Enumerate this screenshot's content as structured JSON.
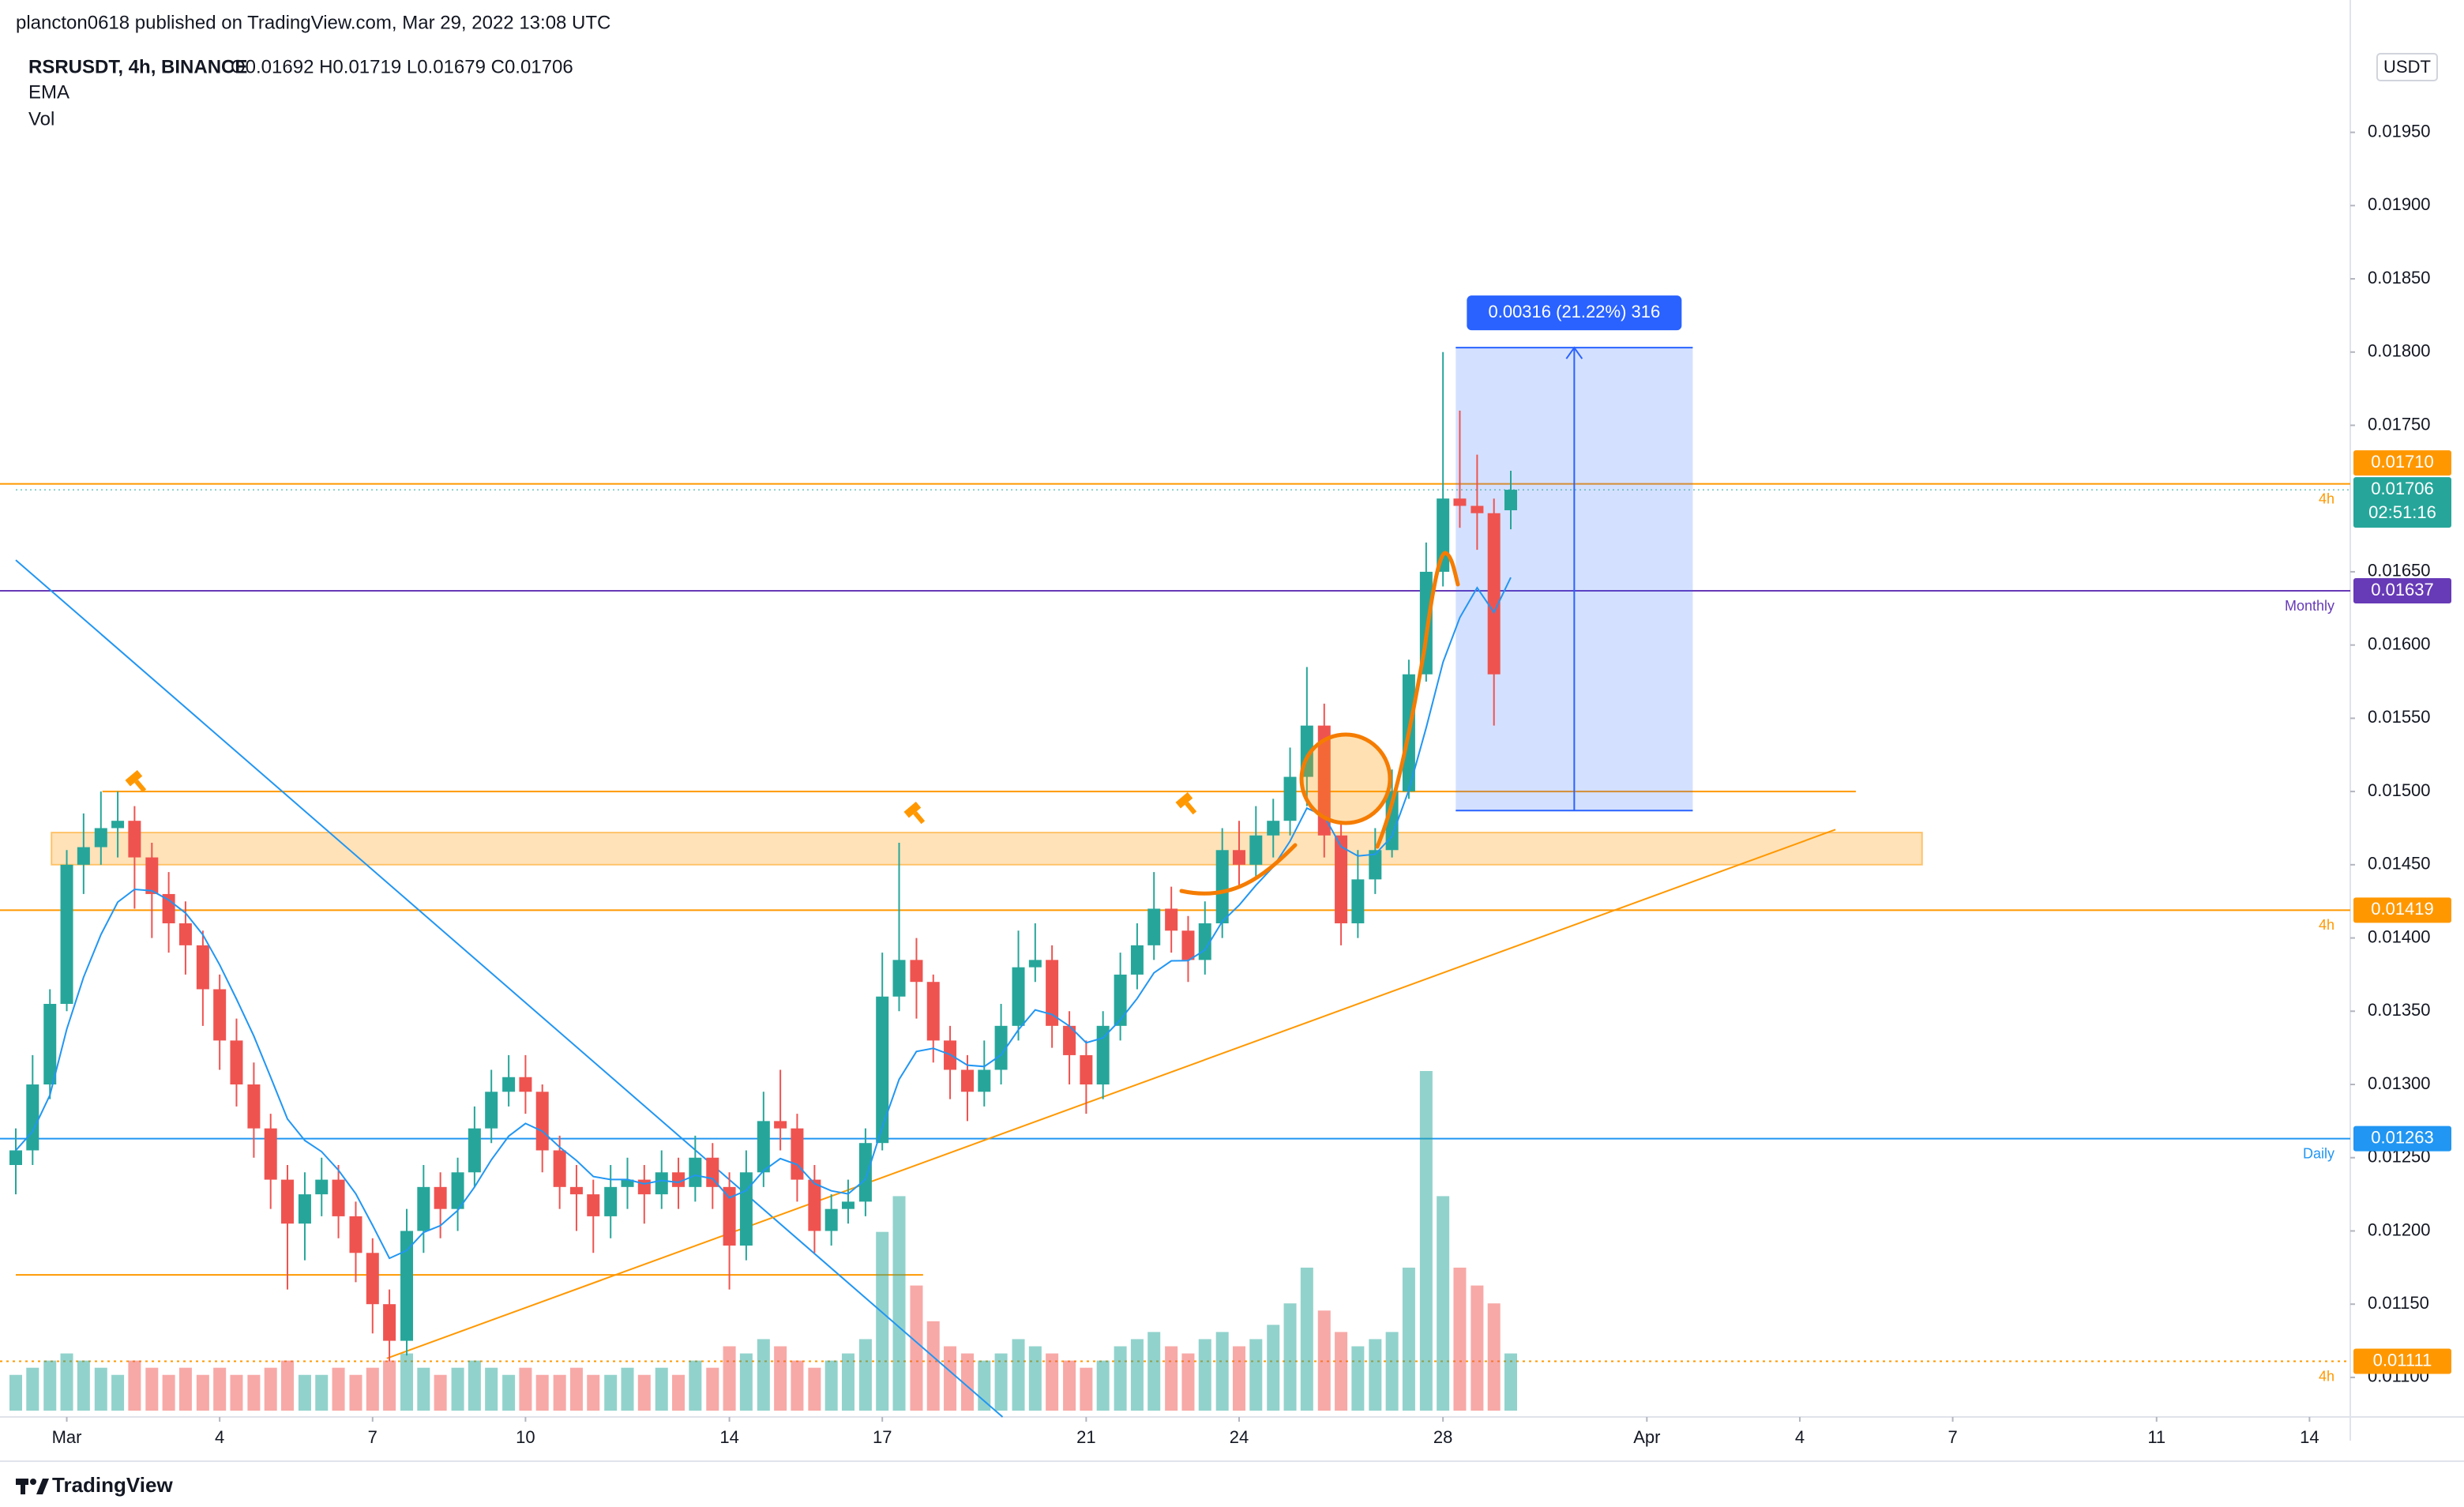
{
  "header": {
    "published": "plancton0618 published on TradingView.com, Mar 29, 2022 13:08 UTC",
    "symbol": "RSRUSDT, 4h, BINANCE",
    "ohlc": "O0.01692 H0.01719 L0.01679 C0.01706",
    "indicators": [
      "EMA",
      "Vol"
    ]
  },
  "chart_data": {
    "type": "candlestick",
    "x": [
      0,
      0.33,
      0.67,
      1,
      1.33,
      1.67,
      2,
      2.33,
      2.67,
      3,
      3.33,
      3.67,
      4,
      4.33,
      4.67,
      5,
      5.33,
      5.67,
      6,
      6.33,
      6.67,
      7,
      7.33,
      7.67,
      8,
      8.33,
      8.67,
      9,
      9.33,
      9.67,
      10,
      10.33,
      10.67,
      11,
      11.33,
      11.67,
      12,
      12.33,
      12.67,
      13,
      13.33,
      13.67,
      14,
      14.33,
      14.67,
      15,
      15.33,
      15.67,
      16,
      16.33,
      16.67,
      17,
      17.33,
      17.67,
      18,
      18.33,
      18.67,
      19,
      19.33,
      19.67,
      20,
      20.33,
      20.67,
      21,
      21.33,
      21.67,
      22,
      22.33,
      22.67,
      23,
      23.33,
      23.67,
      24,
      24.33,
      24.67,
      25,
      25.33,
      25.67,
      26,
      26.33,
      26.67,
      27,
      27.33,
      27.67,
      28,
      28.33,
      28.67,
      29,
      29.33
    ],
    "open": [
      0.01245,
      0.01255,
      0.013,
      0.01355,
      0.0145,
      0.01462,
      0.01475,
      0.0148,
      0.01455,
      0.0143,
      0.0141,
      0.01395,
      0.01365,
      0.0133,
      0.013,
      0.0127,
      0.01235,
      0.01205,
      0.01225,
      0.01235,
      0.0121,
      0.01185,
      0.0115,
      0.01125,
      0.012,
      0.0123,
      0.01215,
      0.0124,
      0.0127,
      0.01295,
      0.01305,
      0.01295,
      0.01255,
      0.0123,
      0.01225,
      0.0121,
      0.0123,
      0.01235,
      0.01225,
      0.0124,
      0.0123,
      0.0125,
      0.0123,
      0.0119,
      0.0124,
      0.01275,
      0.0127,
      0.01235,
      0.012,
      0.01215,
      0.0122,
      0.0126,
      0.0136,
      0.01385,
      0.0137,
      0.0133,
      0.0131,
      0.01295,
      0.0131,
      0.0134,
      0.0138,
      0.01385,
      0.0134,
      0.0132,
      0.013,
      0.0134,
      0.01375,
      0.01395,
      0.0142,
      0.01405,
      0.01385,
      0.0141,
      0.0146,
      0.0145,
      0.0147,
      0.0148,
      0.0151,
      0.01545,
      0.0147,
      0.0141,
      0.0144,
      0.0146,
      0.015,
      0.0158,
      0.0165,
      0.017,
      0.01695,
      0.0169,
      0.01692
    ],
    "high": [
      0.0127,
      0.0132,
      0.01365,
      0.0146,
      0.01485,
      0.015,
      0.015,
      0.0149,
      0.01465,
      0.01445,
      0.01425,
      0.01405,
      0.01375,
      0.01345,
      0.01315,
      0.0128,
      0.01245,
      0.0124,
      0.0125,
      0.01245,
      0.0122,
      0.01195,
      0.0116,
      0.01215,
      0.01245,
      0.0124,
      0.0125,
      0.01285,
      0.0131,
      0.0132,
      0.0132,
      0.013,
      0.01265,
      0.01245,
      0.01235,
      0.01245,
      0.0125,
      0.01245,
      0.01255,
      0.0125,
      0.01265,
      0.0126,
      0.0124,
      0.01255,
      0.01295,
      0.0131,
      0.0128,
      0.01245,
      0.01225,
      0.01235,
      0.0127,
      0.0139,
      0.01465,
      0.014,
      0.01375,
      0.0134,
      0.0132,
      0.0133,
      0.01355,
      0.01405,
      0.0141,
      0.01395,
      0.0135,
      0.0133,
      0.0135,
      0.0139,
      0.0141,
      0.01445,
      0.01435,
      0.01415,
      0.01425,
      0.01475,
      0.0148,
      0.0149,
      0.01495,
      0.0153,
      0.01585,
      0.0156,
      0.0148,
      0.0146,
      0.01475,
      0.01515,
      0.0159,
      0.0167,
      0.018,
      0.0176,
      0.0173,
      0.017,
      0.01719
    ],
    "low": [
      0.01225,
      0.01245,
      0.0129,
      0.0135,
      0.0143,
      0.0145,
      0.01455,
      0.0142,
      0.014,
      0.0139,
      0.01375,
      0.0134,
      0.0131,
      0.01285,
      0.0125,
      0.01215,
      0.0116,
      0.0118,
      0.0121,
      0.01195,
      0.01165,
      0.0113,
      0.01111,
      0.01115,
      0.01185,
      0.01195,
      0.012,
      0.0123,
      0.0126,
      0.01285,
      0.0128,
      0.0124,
      0.01215,
      0.012,
      0.01185,
      0.01195,
      0.01215,
      0.01205,
      0.01215,
      0.01215,
      0.0122,
      0.01215,
      0.0116,
      0.0118,
      0.0123,
      0.01255,
      0.0122,
      0.01185,
      0.0119,
      0.01205,
      0.0121,
      0.01255,
      0.0135,
      0.01345,
      0.01315,
      0.0129,
      0.01275,
      0.01285,
      0.013,
      0.0133,
      0.0137,
      0.01325,
      0.013,
      0.0128,
      0.0129,
      0.0133,
      0.01365,
      0.01385,
      0.0139,
      0.0137,
      0.01375,
      0.014,
      0.01435,
      0.0144,
      0.01455,
      0.0147,
      0.0149,
      0.01455,
      0.01395,
      0.014,
      0.0143,
      0.01455,
      0.01495,
      0.01575,
      0.0164,
      0.0168,
      0.01665,
      0.01545,
      0.01679
    ],
    "close": [
      0.01255,
      0.013,
      0.01355,
      0.0145,
      0.01462,
      0.01475,
      0.0148,
      0.01455,
      0.0143,
      0.0141,
      0.01395,
      0.01365,
      0.0133,
      0.013,
      0.0127,
      0.01235,
      0.01205,
      0.01225,
      0.01235,
      0.0121,
      0.01185,
      0.0115,
      0.01125,
      0.012,
      0.0123,
      0.01215,
      0.0124,
      0.0127,
      0.01295,
      0.01305,
      0.01295,
      0.01255,
      0.0123,
      0.01225,
      0.0121,
      0.0123,
      0.01235,
      0.01225,
      0.0124,
      0.0123,
      0.0125,
      0.0123,
      0.0119,
      0.0124,
      0.01275,
      0.0127,
      0.01235,
      0.012,
      0.01215,
      0.0122,
      0.0126,
      0.0136,
      0.01385,
      0.0137,
      0.0133,
      0.0131,
      0.01295,
      0.0131,
      0.0134,
      0.0138,
      0.01385,
      0.0134,
      0.0132,
      0.013,
      0.0134,
      0.01375,
      0.01395,
      0.0142,
      0.01405,
      0.01385,
      0.0141,
      0.0146,
      0.0145,
      0.0147,
      0.0148,
      0.0151,
      0.01545,
      0.0147,
      0.0141,
      0.0144,
      0.0146,
      0.015,
      0.0158,
      0.0165,
      0.017,
      0.01695,
      0.0169,
      0.0158,
      0.01706
    ],
    "volume": [
      10,
      12,
      14,
      16,
      14,
      12,
      10,
      14,
      12,
      10,
      12,
      10,
      12,
      10,
      10,
      12,
      14,
      10,
      10,
      12,
      10,
      12,
      14,
      16,
      12,
      10,
      12,
      14,
      12,
      10,
      12,
      10,
      10,
      12,
      10,
      10,
      12,
      10,
      12,
      10,
      14,
      12,
      18,
      16,
      20,
      18,
      14,
      12,
      14,
      16,
      20,
      50,
      60,
      35,
      25,
      18,
      16,
      14,
      16,
      20,
      18,
      16,
      14,
      12,
      14,
      18,
      20,
      22,
      18,
      16,
      20,
      22,
      18,
      20,
      24,
      30,
      40,
      28,
      22,
      18,
      20,
      22,
      40,
      95,
      60,
      40,
      35,
      30,
      16
    ],
    "up_color": "#26a69a",
    "down_color": "#ef5350",
    "ema_color": "#2196f3",
    "xlim": [
      0,
      45.8
    ],
    "xticks": [
      {
        "value": 1,
        "label": "Mar"
      },
      4,
      7,
      10,
      14,
      17,
      21,
      24,
      28,
      {
        "value": 32,
        "label": "Apr"
      },
      {
        "value": 35,
        "label": "4"
      },
      {
        "value": 38,
        "label": "7"
      },
      {
        "value": 42,
        "label": "11"
      },
      {
        "value": 45,
        "label": "14"
      }
    ],
    "ylim": [
      0.01073,
      0.02008
    ],
    "yticks": [
      {
        "value": 0.011,
        "label": "0.01100"
      },
      {
        "value": 0.0115,
        "label": "0.01150"
      },
      {
        "value": 0.012,
        "label": "0.01200"
      },
      {
        "value": 0.0125,
        "label": "0.01250"
      },
      {
        "value": 0.013,
        "label": "0.01300"
      },
      {
        "value": 0.0135,
        "label": "0.01350"
      },
      {
        "value": 0.014,
        "label": "0.01400"
      },
      {
        "value": 0.0145,
        "label": "0.01450"
      },
      {
        "value": 0.015,
        "label": "0.01500"
      },
      {
        "value": 0.0155,
        "label": "0.01550"
      },
      {
        "value": 0.016,
        "label": "0.01600"
      },
      {
        "value": 0.0165,
        "label": "0.01650"
      },
      {
        "value": 0.0175,
        "label": "0.01750"
      },
      {
        "value": 0.018,
        "label": "0.01800"
      },
      {
        "value": 0.0185,
        "label": "0.01850"
      },
      {
        "value": 0.019,
        "label": "0.01900"
      },
      {
        "value": 0.0195,
        "label": "0.01950"
      }
    ],
    "currency": "USDT",
    "last_price": {
      "value": 0.01706,
      "label": "0.01706",
      "countdown": "02:51:16"
    },
    "levels": [
      {
        "value": 0.0171,
        "label": "0.01710",
        "tag": "4h",
        "color": "#ff9800"
      },
      {
        "value": 0.01637,
        "label": "0.01637",
        "tag": "Monthly",
        "color": "#673ab7"
      },
      {
        "value": 0.01419,
        "label": "0.01419",
        "tag": "4h",
        "color": "#ff9800"
      },
      {
        "value": 0.01263,
        "label": "0.01263",
        "tag": "Daily",
        "color": "#2196f3"
      },
      {
        "value": 0.01111,
        "label": "0.01111",
        "tag": "4h",
        "color": "#ff9800",
        "dotted": true
      }
    ],
    "segments": [
      {
        "value": 0.015,
        "x": [
          1.7,
          36.1
        ],
        "color": "#ff9800"
      },
      {
        "value": 0.0117,
        "x": [
          0,
          17.8
        ],
        "color": "#ff9800"
      }
    ],
    "zone": {
      "from": 0.0145,
      "to": 0.01472,
      "x": [
        0.7,
        37.4
      ],
      "color": "#ff9800"
    },
    "trendlines": [
      {
        "x": [
          0,
          19.36
        ],
        "y": [
          0.01658,
          0.01073
        ],
        "color": "#2196f3"
      },
      {
        "x": [
          7.28,
          35.7
        ],
        "y": [
          0.01113,
          0.01474
        ],
        "color": "#ff9800"
      }
    ],
    "measure": {
      "x": [
        28.25,
        32.9
      ],
      "from": 0.01487,
      "to": 0.01803,
      "label": "0.00316 (21.22%) 316"
    }
  },
  "footer": {
    "brand": "TradingView"
  }
}
